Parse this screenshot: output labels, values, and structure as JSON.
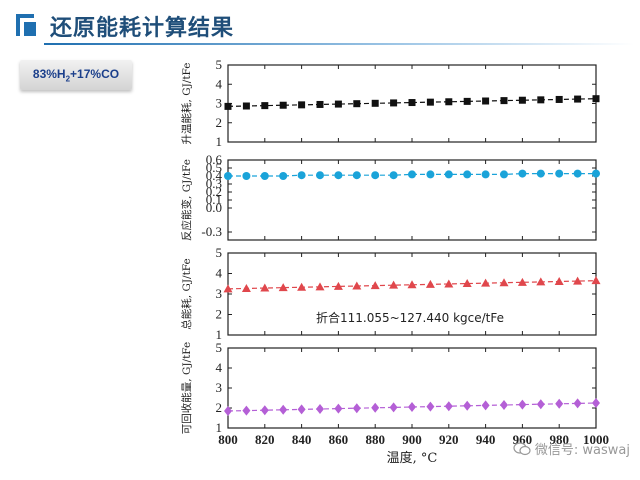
{
  "header": {
    "title": "还原能耗计算结果",
    "accent_color": "#1f4e79",
    "icon": "slide-bracket-icon"
  },
  "gas": {
    "pre": "83%H",
    "sub": "2",
    "post": "+17%CO"
  },
  "watermark": {
    "icon": "wechat-icon",
    "text": "微信号: waswaj"
  },
  "chart_data": {
    "type": "line",
    "x": [
      800,
      820,
      840,
      860,
      880,
      900,
      920,
      940,
      960,
      980,
      1000
    ],
    "xlabel": "温度, °C",
    "xlim": [
      800,
      1000
    ],
    "x_ticks": [
      800,
      820,
      840,
      860,
      880,
      900,
      920,
      940,
      960,
      980,
      1000
    ],
    "grid": false,
    "annotation": "折合111.055~127.440 kgce/tFe",
    "panels": [
      {
        "ylabel": "升温能耗, GJ/tFe",
        "ylim": [
          1,
          5
        ],
        "y_ticks": [
          1,
          2,
          3,
          4,
          5
        ],
        "marker": "square",
        "color": "#111111",
        "x": [
          800,
          810,
          820,
          830,
          840,
          850,
          860,
          870,
          880,
          890,
          900,
          910,
          920,
          930,
          940,
          950,
          960,
          970,
          980,
          990,
          1000
        ],
        "values": [
          2.85,
          2.87,
          2.89,
          2.91,
          2.93,
          2.95,
          2.97,
          2.99,
          3.01,
          3.03,
          3.05,
          3.07,
          3.09,
          3.11,
          3.13,
          3.15,
          3.17,
          3.19,
          3.21,
          3.23,
          3.25
        ]
      },
      {
        "ylabel": "反应能变, GJ/tFe",
        "ylim": [
          -0.4,
          0.6
        ],
        "y_ticks": [
          -0.3,
          0.0,
          0.1,
          0.2,
          0.3,
          0.4,
          0.5,
          0.6
        ],
        "y_tick_labels": [
          "-0.3",
          "0.0",
          "0.1",
          "0.2",
          "0.3",
          "0.4",
          "0.5",
          "0.6"
        ],
        "marker": "circle",
        "color": "#1aa3d9",
        "x": [
          800,
          810,
          820,
          830,
          840,
          850,
          860,
          870,
          880,
          890,
          900,
          910,
          920,
          930,
          940,
          950,
          960,
          970,
          980,
          990,
          1000
        ],
        "values": [
          0.4,
          0.4,
          0.4,
          0.4,
          0.41,
          0.41,
          0.41,
          0.41,
          0.41,
          0.41,
          0.42,
          0.42,
          0.42,
          0.42,
          0.42,
          0.42,
          0.43,
          0.43,
          0.43,
          0.43,
          0.43
        ]
      },
      {
        "ylabel": "总能耗, GJ/tFe",
        "ylim": [
          1,
          5
        ],
        "y_ticks": [
          1,
          2,
          3,
          4,
          5
        ],
        "marker": "triangle",
        "color": "#e0474c",
        "x": [
          800,
          810,
          820,
          830,
          840,
          850,
          860,
          870,
          880,
          890,
          900,
          910,
          920,
          930,
          940,
          950,
          960,
          970,
          980,
          990,
          1000
        ],
        "values": [
          3.25,
          3.27,
          3.29,
          3.31,
          3.33,
          3.35,
          3.37,
          3.39,
          3.41,
          3.43,
          3.45,
          3.47,
          3.49,
          3.51,
          3.53,
          3.55,
          3.57,
          3.59,
          3.61,
          3.63,
          3.65
        ]
      },
      {
        "ylabel": "可回收能量, GJ/tFe",
        "ylim": [
          1,
          5
        ],
        "y_ticks": [
          1,
          2,
          3,
          4,
          5
        ],
        "marker": "diamond",
        "color": "#b45fd6",
        "x": [
          800,
          810,
          820,
          830,
          840,
          850,
          860,
          870,
          880,
          890,
          900,
          910,
          920,
          930,
          940,
          950,
          960,
          970,
          980,
          990,
          1000
        ],
        "values": [
          1.85,
          1.87,
          1.89,
          1.91,
          1.93,
          1.95,
          1.97,
          1.99,
          2.01,
          2.03,
          2.05,
          2.07,
          2.09,
          2.11,
          2.13,
          2.15,
          2.17,
          2.19,
          2.21,
          2.23,
          2.25
        ]
      }
    ]
  }
}
